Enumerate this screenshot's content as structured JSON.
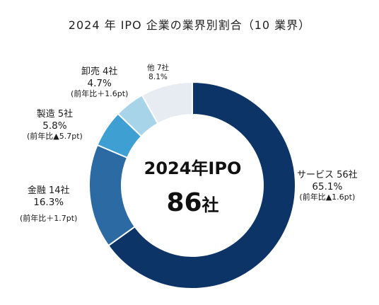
{
  "chart_data": {
    "type": "pie",
    "title": "2024 年 IPO 企業の業界別割合（10 業界）",
    "center_title": "2024年IPO",
    "center_value": "86",
    "center_unit": "社",
    "categories": [
      "サービス",
      "金融",
      "製造",
      "卸売",
      "他"
    ],
    "values": [
      65.1,
      16.3,
      5.8,
      4.7,
      8.1
    ],
    "colors": [
      "#0d3466",
      "#2b6aa3",
      "#3e9fd3",
      "#a8d4ea",
      "#e6ecf1"
    ],
    "slices": [
      {
        "name": "サービス 56社",
        "percent": "65.1%",
        "change": "(前年比▲1.6pt)",
        "value": 65.1,
        "color": "#0d3466"
      },
      {
        "name": "金融 14社",
        "percent": "16.3%",
        "change": "(前年比＋1.7pt)",
        "value": 16.3,
        "color": "#2b6aa3"
      },
      {
        "name": "製造 5社",
        "percent": "5.8%",
        "change": "(前年比▲5.7pt)",
        "value": 5.8,
        "color": "#3e9fd3"
      },
      {
        "name": "卸売 4社",
        "percent": "4.7%",
        "change": "(前年比＋1.6pt)",
        "value": 4.7,
        "color": "#a8d4ea"
      },
      {
        "name": "他 7社",
        "percent": "8.1%",
        "change": "",
        "value": 8.1,
        "color": "#e6ecf1"
      }
    ]
  }
}
